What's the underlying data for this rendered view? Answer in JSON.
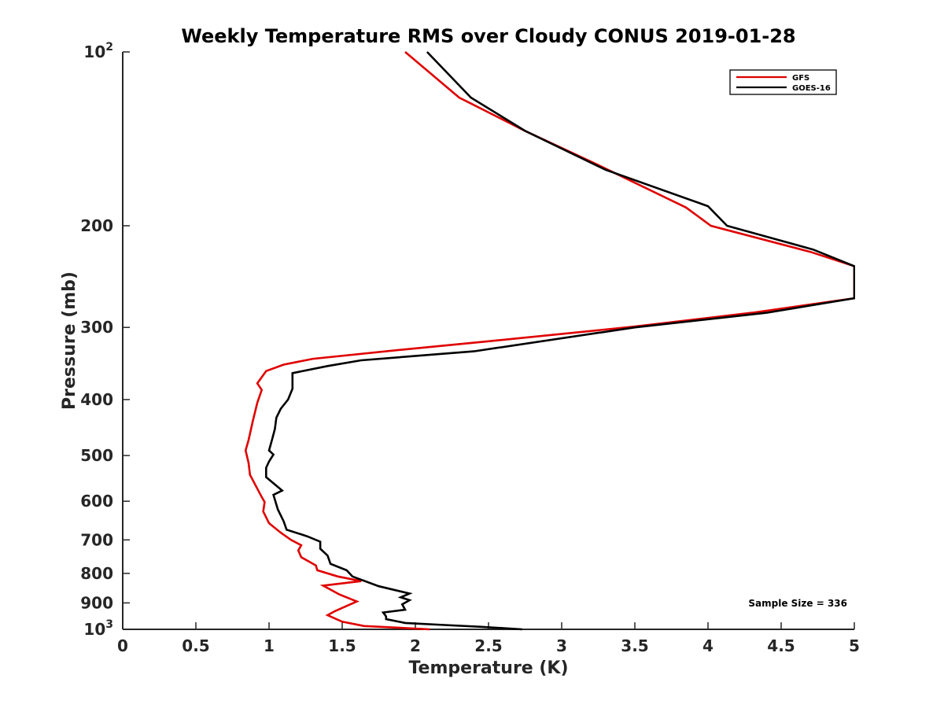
{
  "chart_data": {
    "type": "line",
    "title": "Weekly Temperature RMS over Cloudy CONUS 2019-01-28",
    "xlabel": "Temperature (K)",
    "ylabel": "Pressure (mb)",
    "xlim": [
      0,
      5
    ],
    "ylim": [
      100,
      1000
    ],
    "y_scale": "log",
    "y_reversed": true,
    "x_ticks": [
      "0",
      "0.5",
      "1",
      "1.5",
      "2",
      "2.5",
      "3",
      "3.5",
      "4",
      "4.5",
      "5"
    ],
    "y_ticks": [
      {
        "value": 100,
        "base": "10",
        "exp": "2"
      },
      {
        "value": 200,
        "label": "200"
      },
      {
        "value": 300,
        "label": "300"
      },
      {
        "value": 400,
        "label": "400"
      },
      {
        "value": 500,
        "label": "500"
      },
      {
        "value": 600,
        "label": "600"
      },
      {
        "value": 700,
        "label": "700"
      },
      {
        "value": 800,
        "label": "800"
      },
      {
        "value": 900,
        "label": "900"
      },
      {
        "value": 1000,
        "base": "10",
        "exp": "3"
      }
    ],
    "legend_position": "top-right",
    "grid": false,
    "annotation": "Sample Size = 336",
    "series": [
      {
        "name": "GFS",
        "color": "#e00000",
        "points": [
          [
            2.1,
            1000
          ],
          [
            1.65,
            987
          ],
          [
            1.5,
            970
          ],
          [
            1.4,
            945
          ],
          [
            1.45,
            930
          ],
          [
            1.6,
            895
          ],
          [
            1.48,
            870
          ],
          [
            1.37,
            840
          ],
          [
            1.63,
            825
          ],
          [
            1.47,
            810
          ],
          [
            1.33,
            790
          ],
          [
            1.32,
            775
          ],
          [
            1.22,
            750
          ],
          [
            1.2,
            730
          ],
          [
            1.22,
            715
          ],
          [
            1.15,
            700
          ],
          [
            1.08,
            680
          ],
          [
            1.0,
            655
          ],
          [
            0.96,
            625
          ],
          [
            0.97,
            602
          ],
          [
            0.95,
            590
          ],
          [
            0.87,
            540
          ],
          [
            0.86,
            515
          ],
          [
            0.84,
            490
          ],
          [
            0.86,
            470
          ],
          [
            0.89,
            435
          ],
          [
            0.92,
            405
          ],
          [
            0.95,
            385
          ],
          [
            0.92,
            375
          ],
          [
            0.98,
            357
          ],
          [
            1.1,
            348
          ],
          [
            1.3,
            340
          ],
          [
            1.9,
            328
          ],
          [
            2.5,
            317
          ],
          [
            3.5,
            299
          ],
          [
            4.3,
            283
          ],
          [
            5.0,
            267
          ],
          [
            5.0,
            235
          ],
          [
            4.7,
            222
          ],
          [
            4.02,
            200
          ],
          [
            3.85,
            186
          ],
          [
            3.25,
            157
          ],
          [
            2.75,
            137
          ],
          [
            2.3,
            120
          ],
          [
            1.93,
            100
          ]
        ]
      },
      {
        "name": "GOES-16",
        "color": "#000000",
        "points": [
          [
            2.73,
            1000
          ],
          [
            2.45,
            990
          ],
          [
            2.2,
            983
          ],
          [
            1.93,
            975
          ],
          [
            1.8,
            960
          ],
          [
            1.8,
            950
          ],
          [
            1.78,
            935
          ],
          [
            1.93,
            925
          ],
          [
            1.91,
            905
          ],
          [
            1.96,
            890
          ],
          [
            1.9,
            880
          ],
          [
            1.96,
            867
          ],
          [
            1.75,
            842
          ],
          [
            1.57,
            810
          ],
          [
            1.53,
            790
          ],
          [
            1.42,
            770
          ],
          [
            1.4,
            745
          ],
          [
            1.35,
            725
          ],
          [
            1.35,
            705
          ],
          [
            1.26,
            690
          ],
          [
            1.12,
            672
          ],
          [
            1.1,
            650
          ],
          [
            1.06,
            620
          ],
          [
            1.03,
            585
          ],
          [
            1.09,
            575
          ],
          [
            0.98,
            545
          ],
          [
            0.98,
            525
          ],
          [
            1.0,
            512
          ],
          [
            1.03,
            498
          ],
          [
            1.0,
            490
          ],
          [
            1.02,
            470
          ],
          [
            1.04,
            450
          ],
          [
            1.05,
            430
          ],
          [
            1.08,
            415
          ],
          [
            1.13,
            400
          ],
          [
            1.16,
            383
          ],
          [
            1.16,
            360
          ],
          [
            1.4,
            350
          ],
          [
            1.63,
            342
          ],
          [
            2.4,
            330
          ],
          [
            3.5,
            300
          ],
          [
            4.4,
            283
          ],
          [
            5.0,
            267
          ],
          [
            5.0,
            235
          ],
          [
            4.72,
            220
          ],
          [
            4.13,
            200
          ],
          [
            4.0,
            185
          ],
          [
            3.3,
            160
          ],
          [
            2.75,
            137
          ],
          [
            2.38,
            120
          ],
          [
            2.08,
            100
          ]
        ]
      }
    ]
  }
}
